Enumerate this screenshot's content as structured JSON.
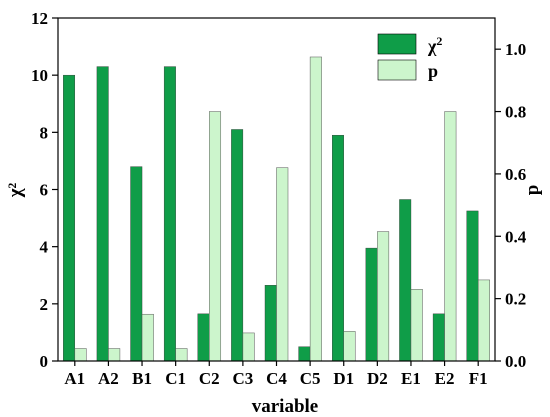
{
  "chart_data": {
    "type": "bar",
    "xlabel": "variable",
    "ylabel_left": "χ²",
    "ylabel_right": "p",
    "categories": [
      "A1",
      "A2",
      "B1",
      "C1",
      "C2",
      "C3",
      "C4",
      "C5",
      "D1",
      "D2",
      "E1",
      "E2",
      "F1"
    ],
    "left_axis": {
      "ylim": [
        0,
        12
      ],
      "ticks": [
        0,
        2,
        4,
        6,
        8,
        10,
        12
      ]
    },
    "right_axis": {
      "ylim": [
        0,
        1.1
      ],
      "ticks": [
        "0.0",
        "0.2",
        "0.4",
        "0.6",
        "0.8",
        "1.0"
      ]
    },
    "series": [
      {
        "name": "χ²",
        "axis": "left",
        "color": "#0f9d48",
        "values": [
          10.0,
          10.3,
          6.8,
          10.3,
          1.65,
          8.1,
          2.65,
          0.5,
          7.9,
          3.95,
          5.65,
          1.65,
          5.25
        ]
      },
      {
        "name": "p",
        "axis": "right",
        "color": "#ccf5cc",
        "values": [
          0.04,
          0.04,
          0.15,
          0.04,
          0.8,
          0.09,
          0.62,
          0.975,
          0.095,
          0.415,
          0.23,
          0.8,
          0.26
        ]
      }
    ],
    "legend": {
      "position": "top-right",
      "entries": [
        "χ",
        "p"
      ],
      "chi_superscript": "2"
    },
    "grid": false
  }
}
